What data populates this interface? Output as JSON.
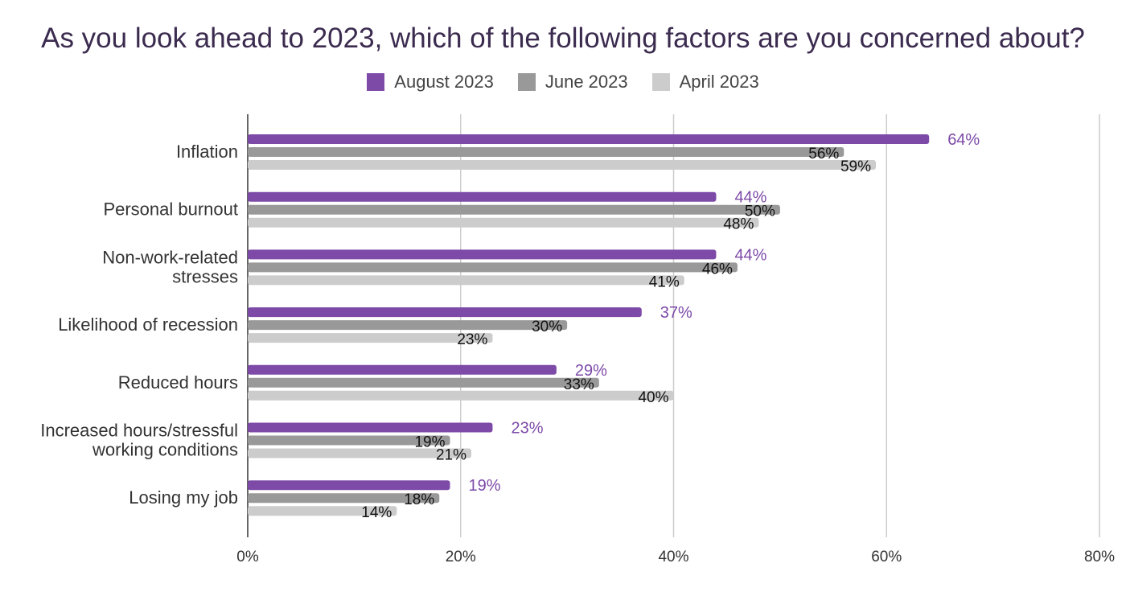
{
  "title": "As you look ahead to 2023, which of the following factors are you concerned about?",
  "colors": {
    "august": "#7d4aa8",
    "june": "#999999",
    "april": "#cccccc"
  },
  "chart_data": {
    "type": "bar",
    "orientation": "horizontal",
    "categories": [
      [
        "Inflation"
      ],
      [
        "Personal burnout"
      ],
      [
        "Non-work-related",
        "stresses"
      ],
      [
        "Likelihood of recession"
      ],
      [
        "Reduced hours"
      ],
      [
        "Increased hours/stressful",
        "working conditions"
      ],
      [
        "Losing my job"
      ]
    ],
    "series": [
      {
        "name": "August 2023",
        "values": [
          64,
          44,
          44,
          37,
          29,
          23,
          19
        ]
      },
      {
        "name": "June 2023",
        "values": [
          56,
          50,
          46,
          30,
          33,
          19,
          18
        ]
      },
      {
        "name": "April 2023",
        "values": [
          59,
          48,
          41,
          23,
          40,
          21,
          14
        ]
      }
    ],
    "value_suffix": "%",
    "xlim": [
      0,
      80
    ],
    "xticks": [
      "0%",
      "20%",
      "40%",
      "60%",
      "80%"
    ],
    "grid": true,
    "legend": "top"
  }
}
